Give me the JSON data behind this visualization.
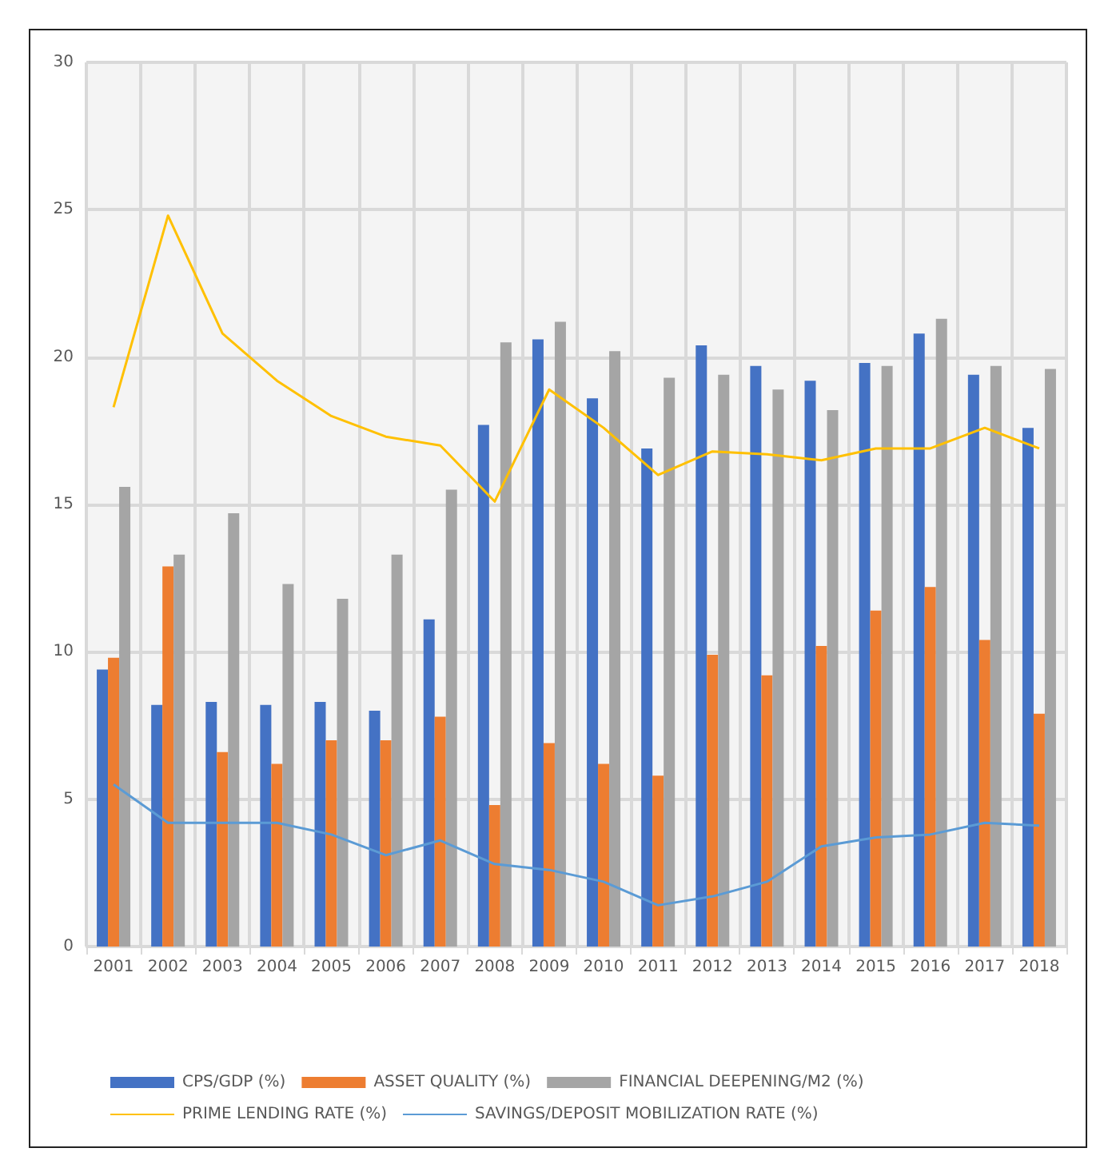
{
  "chart_data": {
    "type": "bar",
    "categories": [
      "2001",
      "2002",
      "2003",
      "2004",
      "2005",
      "2006",
      "2007",
      "2008",
      "2009",
      "2010",
      "2011",
      "2012",
      "2013",
      "2014",
      "2015",
      "2016",
      "2017",
      "2018"
    ],
    "series": [
      {
        "name": "CPS/GDP (%)",
        "color": "#4472c4",
        "values": [
          9.4,
          8.2,
          8.3,
          8.2,
          8.3,
          8.0,
          11.1,
          17.7,
          20.6,
          18.6,
          16.9,
          20.4,
          19.7,
          19.2,
          19.8,
          20.8,
          19.4,
          17.6
        ]
      },
      {
        "name": "ASSET QUALITY (%)",
        "color": "#ed7d31",
        "values": [
          9.8,
          12.9,
          6.6,
          6.2,
          7.0,
          7.0,
          7.8,
          4.8,
          6.9,
          6.2,
          5.8,
          9.9,
          9.2,
          10.2,
          11.4,
          12.2,
          10.4,
          7.9
        ]
      },
      {
        "name": "FINANCIAL DEEPENING/M2 (%)",
        "color": "#a5a5a5",
        "values": [
          15.6,
          13.3,
          14.7,
          12.3,
          11.8,
          13.3,
          15.5,
          20.5,
          21.2,
          20.2,
          19.3,
          19.4,
          18.9,
          18.2,
          19.7,
          21.3,
          19.7,
          19.6
        ]
      },
      {
        "name": "PRIME LENDING RATE (%)",
        "type": "line",
        "color": "#ffc000",
        "values": [
          18.3,
          24.8,
          20.8,
          19.2,
          18.0,
          17.3,
          17.0,
          15.1,
          18.9,
          17.6,
          16.0,
          16.8,
          16.7,
          16.5,
          16.9,
          16.9,
          17.6,
          16.9
        ]
      },
      {
        "name": "SAVINGS/DEPOSIT MOBILIZATION RATE (%)",
        "type": "line",
        "color": "#5b9bd5",
        "values": [
          5.5,
          4.2,
          4.2,
          4.2,
          3.8,
          3.1,
          3.6,
          2.8,
          2.6,
          2.2,
          1.4,
          1.7,
          2.2,
          3.4,
          3.7,
          3.8,
          4.2,
          4.1
        ]
      }
    ],
    "ylim": [
      0,
      30
    ],
    "yticks": [
      0,
      5,
      10,
      15,
      20,
      25,
      30
    ],
    "grid": true,
    "legend": "bottom",
    "marker": "none"
  }
}
